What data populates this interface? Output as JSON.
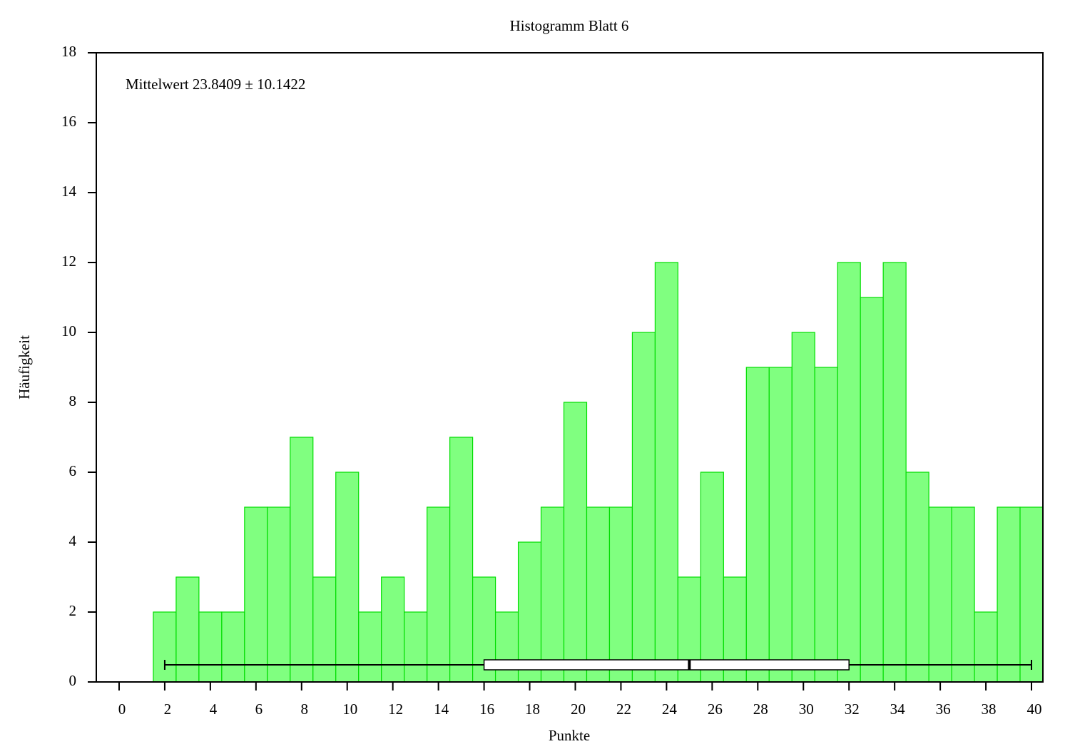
{
  "chart_data": {
    "type": "histogram",
    "title": "Histogramm Blatt 6",
    "x_label": "Punkte",
    "y_label": "Häufigkeit",
    "annotation": "Mittelwert 23.8409 ± 10.1422",
    "bins": [
      1.5,
      2.5,
      3.5,
      4.5,
      5.5,
      6.5,
      7.5,
      8.5,
      9.5,
      10.5,
      11.5,
      12.5,
      13.5,
      14.5,
      15.5,
      16.5,
      17.5,
      18.5,
      19.5,
      20.5,
      21.5,
      22.5,
      23.5,
      24.5,
      25.5,
      26.5,
      27.5,
      28.5,
      29.5,
      30.5,
      31.5,
      32.5,
      33.5,
      34.5,
      35.5,
      36.5,
      37.5,
      38.5,
      39.5,
      40.5
    ],
    "counts": [
      2,
      3,
      2,
      2,
      5,
      5,
      7,
      3,
      6,
      2,
      3,
      2,
      5,
      7,
      3,
      2,
      4,
      5,
      8,
      5,
      5,
      10,
      12,
      3,
      6,
      3,
      9,
      9,
      10,
      9,
      12,
      11,
      12,
      6,
      5,
      5,
      2,
      5,
      5
    ],
    "color": "#80ff80",
    "edge_color": "#00dd00",
    "boxplot": {
      "min": 2,
      "q1": 16,
      "median": 25,
      "q3": 32,
      "max": 40
    },
    "xlim": [
      -1,
      40.5
    ],
    "ylim": [
      0,
      18
    ],
    "xticks": [
      0,
      2,
      4,
      6,
      8,
      10,
      12,
      14,
      16,
      18,
      20,
      22,
      24,
      26,
      28,
      30,
      32,
      34,
      36,
      38,
      40
    ],
    "yticks": [
      0,
      2,
      4,
      6,
      8,
      10,
      12,
      14,
      16,
      18
    ]
  }
}
